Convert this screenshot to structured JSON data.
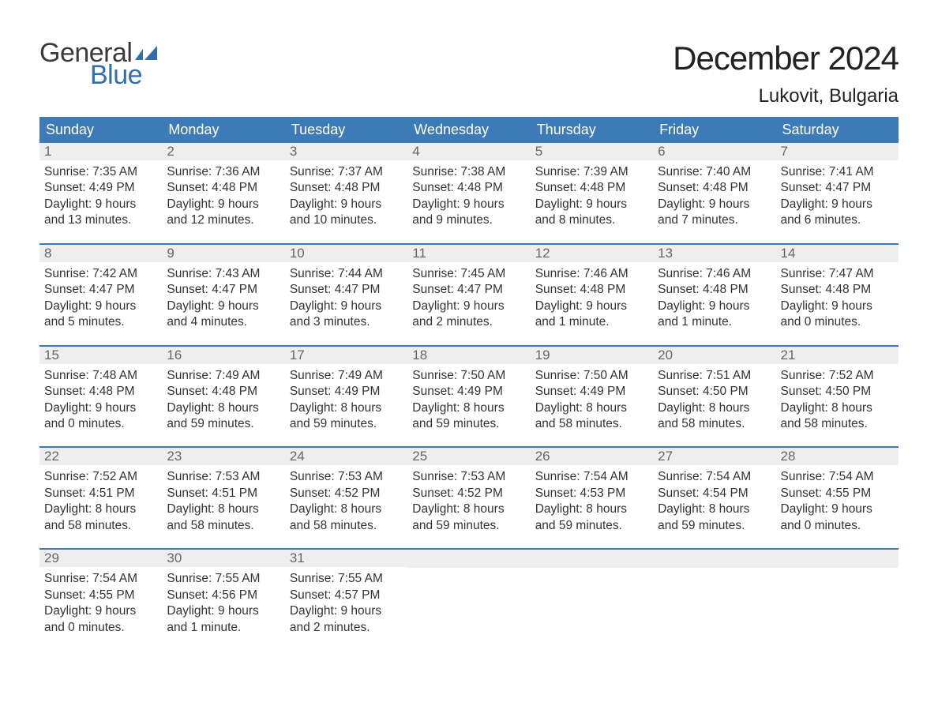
{
  "brand": {
    "word1": "General",
    "word2": "Blue",
    "word1_color": "#3a3a3a",
    "word2_color": "#2f6fb0",
    "flag_color": "#2f6fb0",
    "font_size_pt": 26
  },
  "header": {
    "month_title": "December 2024",
    "month_title_fontsize_pt": 32,
    "month_title_color": "#222222",
    "location": "Lukovit, Bulgaria",
    "location_fontsize_pt": 18,
    "location_color": "#222222"
  },
  "calendar": {
    "dow_bg": "#3d7bb8",
    "dow_text_color": "#ffffff",
    "dow_fontsize_pt": 14,
    "week_divider_color": "#3d7bb8",
    "daynum_bg": "#eeeeee",
    "daynum_color": "#666666",
    "body_text_color": "#333333",
    "body_fontsize_pt": 12,
    "days_of_week": [
      "Sunday",
      "Monday",
      "Tuesday",
      "Wednesday",
      "Thursday",
      "Friday",
      "Saturday"
    ],
    "weeks": [
      [
        {
          "n": "1",
          "sunrise": "Sunrise: 7:35 AM",
          "sunset": "Sunset: 4:49 PM",
          "d1": "Daylight: 9 hours",
          "d2": "and 13 minutes."
        },
        {
          "n": "2",
          "sunrise": "Sunrise: 7:36 AM",
          "sunset": "Sunset: 4:48 PM",
          "d1": "Daylight: 9 hours",
          "d2": "and 12 minutes."
        },
        {
          "n": "3",
          "sunrise": "Sunrise: 7:37 AM",
          "sunset": "Sunset: 4:48 PM",
          "d1": "Daylight: 9 hours",
          "d2": "and 10 minutes."
        },
        {
          "n": "4",
          "sunrise": "Sunrise: 7:38 AM",
          "sunset": "Sunset: 4:48 PM",
          "d1": "Daylight: 9 hours",
          "d2": "and 9 minutes."
        },
        {
          "n": "5",
          "sunrise": "Sunrise: 7:39 AM",
          "sunset": "Sunset: 4:48 PM",
          "d1": "Daylight: 9 hours",
          "d2": "and 8 minutes."
        },
        {
          "n": "6",
          "sunrise": "Sunrise: 7:40 AM",
          "sunset": "Sunset: 4:48 PM",
          "d1": "Daylight: 9 hours",
          "d2": "and 7 minutes."
        },
        {
          "n": "7",
          "sunrise": "Sunrise: 7:41 AM",
          "sunset": "Sunset: 4:47 PM",
          "d1": "Daylight: 9 hours",
          "d2": "and 6 minutes."
        }
      ],
      [
        {
          "n": "8",
          "sunrise": "Sunrise: 7:42 AM",
          "sunset": "Sunset: 4:47 PM",
          "d1": "Daylight: 9 hours",
          "d2": "and 5 minutes."
        },
        {
          "n": "9",
          "sunrise": "Sunrise: 7:43 AM",
          "sunset": "Sunset: 4:47 PM",
          "d1": "Daylight: 9 hours",
          "d2": "and 4 minutes."
        },
        {
          "n": "10",
          "sunrise": "Sunrise: 7:44 AM",
          "sunset": "Sunset: 4:47 PM",
          "d1": "Daylight: 9 hours",
          "d2": "and 3 minutes."
        },
        {
          "n": "11",
          "sunrise": "Sunrise: 7:45 AM",
          "sunset": "Sunset: 4:47 PM",
          "d1": "Daylight: 9 hours",
          "d2": "and 2 minutes."
        },
        {
          "n": "12",
          "sunrise": "Sunrise: 7:46 AM",
          "sunset": "Sunset: 4:48 PM",
          "d1": "Daylight: 9 hours",
          "d2": "and 1 minute."
        },
        {
          "n": "13",
          "sunrise": "Sunrise: 7:46 AM",
          "sunset": "Sunset: 4:48 PM",
          "d1": "Daylight: 9 hours",
          "d2": "and 1 minute."
        },
        {
          "n": "14",
          "sunrise": "Sunrise: 7:47 AM",
          "sunset": "Sunset: 4:48 PM",
          "d1": "Daylight: 9 hours",
          "d2": "and 0 minutes."
        }
      ],
      [
        {
          "n": "15",
          "sunrise": "Sunrise: 7:48 AM",
          "sunset": "Sunset: 4:48 PM",
          "d1": "Daylight: 9 hours",
          "d2": "and 0 minutes."
        },
        {
          "n": "16",
          "sunrise": "Sunrise: 7:49 AM",
          "sunset": "Sunset: 4:48 PM",
          "d1": "Daylight: 8 hours",
          "d2": "and 59 minutes."
        },
        {
          "n": "17",
          "sunrise": "Sunrise: 7:49 AM",
          "sunset": "Sunset: 4:49 PM",
          "d1": "Daylight: 8 hours",
          "d2": "and 59 minutes."
        },
        {
          "n": "18",
          "sunrise": "Sunrise: 7:50 AM",
          "sunset": "Sunset: 4:49 PM",
          "d1": "Daylight: 8 hours",
          "d2": "and 59 minutes."
        },
        {
          "n": "19",
          "sunrise": "Sunrise: 7:50 AM",
          "sunset": "Sunset: 4:49 PM",
          "d1": "Daylight: 8 hours",
          "d2": "and 58 minutes."
        },
        {
          "n": "20",
          "sunrise": "Sunrise: 7:51 AM",
          "sunset": "Sunset: 4:50 PM",
          "d1": "Daylight: 8 hours",
          "d2": "and 58 minutes."
        },
        {
          "n": "21",
          "sunrise": "Sunrise: 7:52 AM",
          "sunset": "Sunset: 4:50 PM",
          "d1": "Daylight: 8 hours",
          "d2": "and 58 minutes."
        }
      ],
      [
        {
          "n": "22",
          "sunrise": "Sunrise: 7:52 AM",
          "sunset": "Sunset: 4:51 PM",
          "d1": "Daylight: 8 hours",
          "d2": "and 58 minutes."
        },
        {
          "n": "23",
          "sunrise": "Sunrise: 7:53 AM",
          "sunset": "Sunset: 4:51 PM",
          "d1": "Daylight: 8 hours",
          "d2": "and 58 minutes."
        },
        {
          "n": "24",
          "sunrise": "Sunrise: 7:53 AM",
          "sunset": "Sunset: 4:52 PM",
          "d1": "Daylight: 8 hours",
          "d2": "and 58 minutes."
        },
        {
          "n": "25",
          "sunrise": "Sunrise: 7:53 AM",
          "sunset": "Sunset: 4:52 PM",
          "d1": "Daylight: 8 hours",
          "d2": "and 59 minutes."
        },
        {
          "n": "26",
          "sunrise": "Sunrise: 7:54 AM",
          "sunset": "Sunset: 4:53 PM",
          "d1": "Daylight: 8 hours",
          "d2": "and 59 minutes."
        },
        {
          "n": "27",
          "sunrise": "Sunrise: 7:54 AM",
          "sunset": "Sunset: 4:54 PM",
          "d1": "Daylight: 8 hours",
          "d2": "and 59 minutes."
        },
        {
          "n": "28",
          "sunrise": "Sunrise: 7:54 AM",
          "sunset": "Sunset: 4:55 PM",
          "d1": "Daylight: 9 hours",
          "d2": "and 0 minutes."
        }
      ],
      [
        {
          "n": "29",
          "sunrise": "Sunrise: 7:54 AM",
          "sunset": "Sunset: 4:55 PM",
          "d1": "Daylight: 9 hours",
          "d2": "and 0 minutes."
        },
        {
          "n": "30",
          "sunrise": "Sunrise: 7:55 AM",
          "sunset": "Sunset: 4:56 PM",
          "d1": "Daylight: 9 hours",
          "d2": "and 1 minute."
        },
        {
          "n": "31",
          "sunrise": "Sunrise: 7:55 AM",
          "sunset": "Sunset: 4:57 PM",
          "d1": "Daylight: 9 hours",
          "d2": "and 2 minutes."
        },
        null,
        null,
        null,
        null
      ]
    ]
  }
}
